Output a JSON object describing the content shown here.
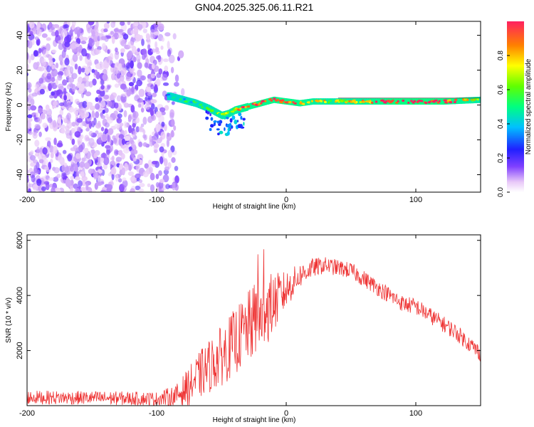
{
  "chart_data": [
    {
      "type": "heatmap",
      "title": "GN04.2025.325.06.11.R21",
      "xlabel": "Height of straight line (km)",
      "ylabel": "Frequency (Hz)",
      "xlim": [
        -200,
        150
      ],
      "ylim": [
        -50,
        48
      ],
      "xticks": [
        -200,
        -100,
        0,
        100
      ],
      "yticks": [
        -40,
        -20,
        0,
        20,
        40
      ],
      "colorbar": {
        "label": "Normalized spectral amplitude",
        "range": [
          0,
          1
        ],
        "ticks": [
          "0.0",
          "0.2",
          "0.4",
          "0.6",
          "0.8"
        ],
        "tick_values": [
          0,
          0.2,
          0.4,
          0.6,
          0.8
        ]
      },
      "noise_region_x": [
        -200,
        -80
      ],
      "ridge": {
        "x": [
          -90,
          -80,
          -70,
          -60,
          -55,
          -50,
          -45,
          -40,
          -35,
          -30,
          -20,
          -10,
          0,
          10,
          20,
          40,
          60,
          80,
          100,
          120,
          150
        ],
        "frequency_hz": [
          5,
          3,
          1,
          -2,
          -4,
          -6,
          -5,
          -3,
          -2,
          -1,
          1,
          3,
          2,
          1,
          2,
          2,
          2,
          2,
          2,
          2,
          3
        ],
        "amplitude": [
          0.3,
          0.35,
          0.4,
          0.45,
          0.5,
          0.55,
          0.6,
          0.65,
          0.75,
          0.85,
          0.9,
          0.9,
          0.85,
          0.9,
          0.7,
          0.6,
          0.75,
          0.95,
          1.0,
          0.95,
          0.6
        ]
      }
    },
    {
      "type": "line",
      "xlabel": "Height of straight line (km)",
      "ylabel": "SNR (10 * v/v)",
      "xlim": [
        -200,
        150
      ],
      "ylim": [
        0,
        6200
      ],
      "xticks": [
        -200,
        -100,
        0,
        100
      ],
      "yticks": [
        2000,
        4000,
        6000
      ],
      "series": [
        {
          "name": "SNR",
          "color": "#ee3333",
          "envelope_x": [
            -200,
            -150,
            -100,
            -85,
            -75,
            -65,
            -50,
            -40,
            -30,
            -20,
            -10,
            0,
            10,
            20,
            30,
            40,
            50,
            60,
            70,
            80,
            90,
            100,
            110,
            120,
            130,
            140,
            150
          ],
          "envelope_y": [
            300,
            280,
            250,
            350,
            700,
            1200,
            1800,
            2300,
            2800,
            3300,
            3700,
            4200,
            4700,
            5000,
            5100,
            5000,
            4900,
            4600,
            4300,
            4000,
            3700,
            3600,
            3300,
            3000,
            2700,
            2300,
            1900
          ],
          "spread": [
            250,
            250,
            250,
            400,
            700,
            900,
            1100,
            1200,
            1300,
            1500,
            1100,
            700,
            450,
            350,
            300,
            300,
            300,
            300,
            300,
            300,
            300,
            300,
            300,
            300,
            300,
            300,
            300
          ]
        }
      ]
    }
  ],
  "colors": {
    "line": "#ee3333",
    "background": "#ffffff",
    "axis": "#000000"
  }
}
